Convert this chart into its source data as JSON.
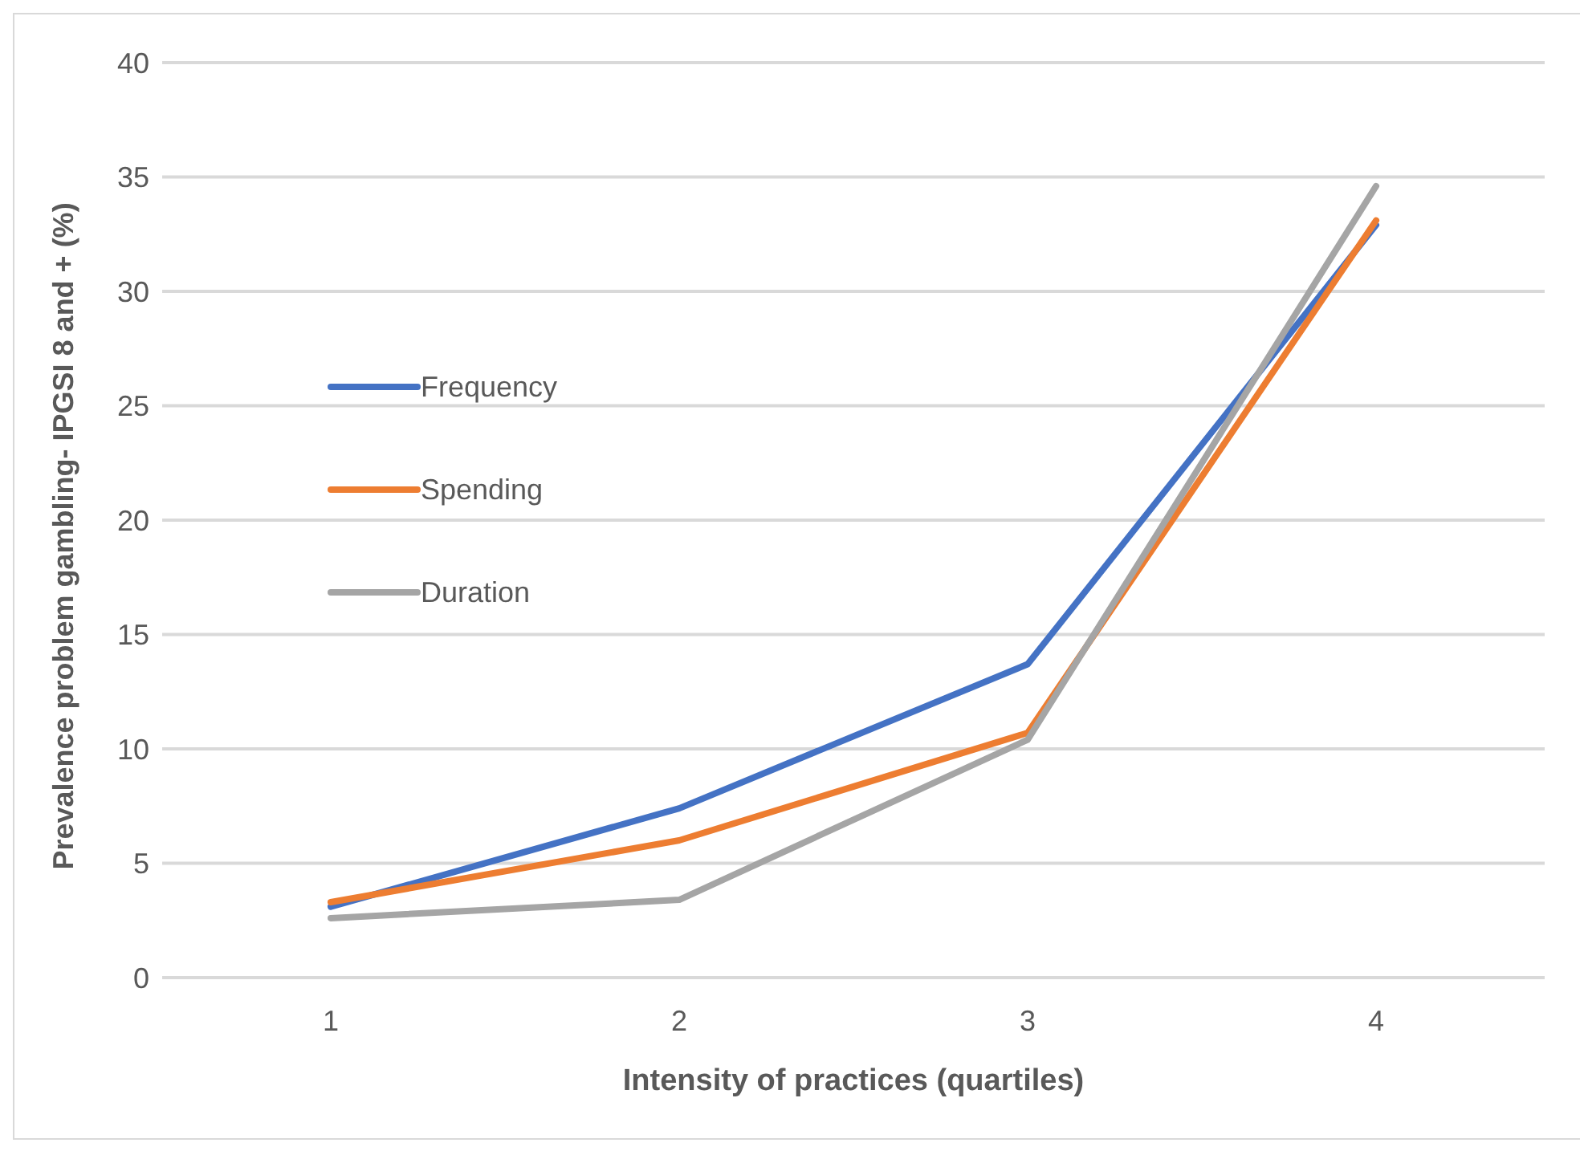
{
  "chart_data": {
    "type": "line",
    "xlabel": "Intensity of practices (quartiles)",
    "ylabel": "Prevalence problem gambling-  IPGSI 8 and + (%)",
    "categories": [
      "1",
      "2",
      "3",
      "4"
    ],
    "series": [
      {
        "name": "Frequency",
        "color": "#4472c4",
        "values": [
          3.1,
          7.4,
          13.7,
          32.9
        ]
      },
      {
        "name": "Spending",
        "color": "#ed7d31",
        "values": [
          3.3,
          6.0,
          10.7,
          33.1
        ]
      },
      {
        "name": "Duration",
        "color": "#a5a5a5",
        "values": [
          2.6,
          3.4,
          10.4,
          34.6
        ]
      }
    ],
    "ylim": [
      0,
      40
    ],
    "yticks": [
      0,
      5,
      10,
      15,
      20,
      25,
      30,
      35,
      40
    ],
    "grid": "y",
    "legend": "left",
    "marker": "none",
    "line_style": "solid"
  }
}
